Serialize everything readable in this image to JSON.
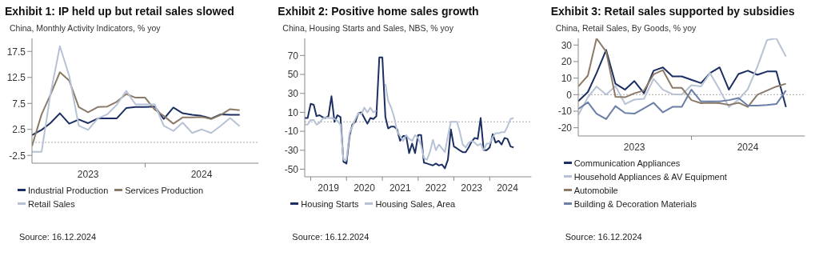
{
  "chart_data": [
    {
      "type": "line",
      "title": "Exhibit 1: IP held up but retail sales slowed",
      "subtitle": "China, Monthly Activity Indicators, % yoy",
      "x": [
        "2023-01",
        "2023-02",
        "2023-03",
        "2023-04",
        "2023-05",
        "2023-06",
        "2023-07",
        "2023-08",
        "2023-09",
        "2023-10",
        "2023-11",
        "2023-12",
        "2024-01",
        "2024-02",
        "2024-03",
        "2024-04",
        "2024-05",
        "2024-06",
        "2024-07",
        "2024-08",
        "2024-09",
        "2024-10",
        "2024-11"
      ],
      "series": [
        {
          "name": "Industrial Production",
          "color": "#1b2f63",
          "values": [
            1.4,
            2.4,
            3.7,
            5.6,
            3.6,
            4.4,
            3.7,
            4.6,
            4.6,
            4.6,
            6.6,
            6.8,
            6.8,
            6.9,
            4.5,
            6.7,
            5.6,
            5.3,
            5.1,
            4.6,
            5.4,
            5.3,
            5.3
          ]
        },
        {
          "name": "Services Production",
          "color": "#8b7a67",
          "values": [
            -0.7,
            5.4,
            9.1,
            13.5,
            11.9,
            6.8,
            5.8,
            6.8,
            6.9,
            7.8,
            9.3,
            8.6,
            8.6,
            6.3,
            5.1,
            3.6,
            4.8,
            4.8,
            4.9,
            4.5,
            5.3,
            6.4,
            6.2
          ]
        },
        {
          "name": "Retail Sales",
          "color": "#b7c2d6",
          "values": [
            -1.8,
            -1.8,
            9.1,
            18.5,
            12.8,
            3.2,
            2.4,
            4.6,
            5.4,
            7.2,
            9.9,
            7.3,
            7.3,
            7.3,
            3.2,
            2.2,
            3.8,
            1.8,
            2.5,
            1.8,
            3.2,
            4.7,
            3.1
          ]
        }
      ],
      "xlim": [
        "2023-01-01",
        "2025-01-01"
      ],
      "xticks": [
        {
          "value": "2023-07-01",
          "label": "2023"
        },
        {
          "value": "2024-01-01",
          "label": null
        },
        {
          "value": "2024-07-01",
          "label": "2024"
        }
      ],
      "ylim": [
        -4,
        20
      ],
      "yticks": [
        -2.5,
        2.5,
        7.5,
        12.5,
        17.5
      ],
      "ref_lines": [
        {
          "axis": "y",
          "value": 0,
          "color": "#aaaaaa",
          "line_style": "dotted"
        }
      ],
      "legend": "bottom",
      "grid": false,
      "line_style": "solid",
      "annotations": [
        "Source: 16.12.2024"
      ]
    },
    {
      "type": "line",
      "title": "Exhibit 2: Positive home sales growth",
      "subtitle": "China, Housing Starts and Sales, NBS, % yoy",
      "x": [
        "2018-11",
        "2018-12",
        "2019-01",
        "2019-02",
        "2019-03",
        "2019-04",
        "2019-05",
        "2019-06",
        "2019-07",
        "2019-08",
        "2019-09",
        "2019-10",
        "2019-11",
        "2019-12",
        "2020-01",
        "2020-02",
        "2020-03",
        "2020-04",
        "2020-05",
        "2020-06",
        "2020-07",
        "2020-08",
        "2020-09",
        "2020-10",
        "2020-11",
        "2020-12",
        "2021-01",
        "2021-02",
        "2021-03",
        "2021-04",
        "2021-05",
        "2021-06",
        "2021-07",
        "2021-08",
        "2021-09",
        "2021-10",
        "2021-11",
        "2021-12",
        "2022-01",
        "2022-02",
        "2022-03",
        "2022-04",
        "2022-05",
        "2022-06",
        "2022-07",
        "2022-08",
        "2022-09",
        "2022-10",
        "2022-11",
        "2022-12",
        "2023-01",
        "2023-02",
        "2023-03",
        "2023-04",
        "2023-05",
        "2023-06",
        "2023-07",
        "2023-08",
        "2023-09",
        "2023-10",
        "2023-11",
        "2023-12",
        "2024-01",
        "2024-02",
        "2024-03",
        "2024-04",
        "2024-05",
        "2024-06",
        "2024-07",
        "2024-08",
        "2024-09"
      ],
      "series": [
        {
          "name": "Housing Starts",
          "color": "#1b2f63",
          "values": [
            4,
            4,
            19,
            18,
            6,
            7,
            5,
            4,
            6,
            27,
            0,
            7,
            5,
            -42,
            -44,
            -15,
            -3,
            0,
            9,
            10,
            4,
            -2,
            4,
            3,
            6,
            68,
            68,
            5,
            -7,
            -5,
            -5,
            -8,
            -20,
            -15,
            -15,
            -33,
            -23,
            -33,
            -14,
            -14,
            -43,
            -44,
            -45,
            -46,
            -44,
            -46,
            -45,
            -49,
            -40,
            -8,
            -26,
            -28,
            -30,
            -32,
            -32,
            -27,
            -21,
            -17,
            -18,
            4,
            -30,
            -30,
            -27,
            -13,
            -22,
            -20,
            -24,
            -17,
            -18,
            -26,
            -27
          ]
        },
        {
          "name": "Housing Sales, Area",
          "color": "#b7c2d6",
          "values": [
            -3,
            -3,
            2,
            2,
            -3,
            -1,
            3,
            5,
            4,
            4,
            3,
            1,
            -3,
            -40,
            -40,
            -12,
            -5,
            3,
            9,
            8,
            15,
            10,
            15,
            10,
            12,
            null,
            null,
            40,
            22,
            15,
            5,
            -10,
            -15,
            -20,
            -14,
            -18,
            -20,
            -14,
            -17,
            -25,
            -38,
            -40,
            -32,
            -19,
            -30,
            -24,
            -28,
            -32,
            -15,
            0,
            0,
            0,
            -10,
            -24,
            -27,
            -22,
            -20,
            -22,
            -25,
            -23,
            -30,
            -23,
            -23,
            -16,
            -12,
            -12,
            -11,
            -11,
            -5,
            3,
            4
          ]
        }
      ],
      "xlim": [
        "2018-11-01",
        "2025-03-01"
      ],
      "xticks": [
        {
          "value": "2019-01-01",
          "label": null
        },
        {
          "value": "2019-07-01",
          "label": "2019"
        },
        {
          "value": "2020-01-01",
          "label": null
        },
        {
          "value": "2020-07-01",
          "label": "2020"
        },
        {
          "value": "2021-01-01",
          "label": null
        },
        {
          "value": "2021-07-01",
          "label": "2021"
        },
        {
          "value": "2022-01-01",
          "label": null
        },
        {
          "value": "2022-07-01",
          "label": "2022"
        },
        {
          "value": "2023-01-01",
          "label": null
        },
        {
          "value": "2023-07-01",
          "label": "2023"
        },
        {
          "value": "2024-01-01",
          "label": null
        },
        {
          "value": "2024-07-01",
          "label": "2024"
        }
      ],
      "ylim": [
        -58,
        88
      ],
      "yticks": [
        -50,
        -30,
        -10,
        10,
        30,
        50,
        70
      ],
      "ref_lines": [
        {
          "axis": "y",
          "value": 0,
          "color": "#aaaaaa",
          "line_style": "dotted"
        }
      ],
      "legend": "bottom",
      "grid": false,
      "line_style": "solid",
      "annotations": [
        "Source: 16.12.2024"
      ]
    },
    {
      "type": "line",
      "title": "Exhibit 3: Retail sales supported by subsidies",
      "subtitle": "China, Retail Sales, By Goods, % yoy",
      "x": [
        "2023-01",
        "2023-02",
        "2023-03",
        "2023-04",
        "2023-05",
        "2023-06",
        "2023-07",
        "2023-08",
        "2023-09",
        "2023-10",
        "2023-11",
        "2023-12",
        "2024-01",
        "2024-02",
        "2024-03",
        "2024-04",
        "2024-05",
        "2024-06",
        "2024-07",
        "2024-08",
        "2024-09",
        "2024-10",
        "2024-11"
      ],
      "series": [
        {
          "name": "Communication Appliances",
          "color": "#1b2f63",
          "values": [
            -4,
            1.6,
            13,
            27,
            6.6,
            3,
            8.2,
            0.8,
            14.5,
            16.5,
            11,
            11,
            9,
            7,
            13,
            16.5,
            3,
            12.5,
            14.5,
            12,
            14,
            14,
            -7.5
          ]
        },
        {
          "name": "Household Appliances & AV Equipment",
          "color": "#b7c2d6",
          "values": [
            -12.3,
            -1.6,
            4.9,
            0,
            5.2,
            -5.7,
            -3,
            -2.5,
            9.5,
            3,
            0.3,
            0,
            5.7,
            5,
            13,
            3,
            -7.5,
            -3,
            3.3,
            17,
            33,
            34,
            23
          ]
        },
        {
          "name": "Automobile",
          "color": "#8b7a67",
          "values": [
            4.9,
            11.5,
            34,
            26,
            -1.3,
            -1.6,
            0.8,
            2.5,
            12.3,
            14.8,
            4.1,
            4.1,
            -3.3,
            -5.2,
            -4.9,
            -5.2,
            -6.2,
            -4.9,
            -7.4,
            0,
            2.5,
            4.9,
            6.6
          ]
        },
        {
          "name": "Building & Decoration Materials",
          "color": "#6b7fa6",
          "values": [
            -8.7,
            -4.6,
            -11.5,
            -14.8,
            -6.9,
            -11.1,
            -11.5,
            -8.2,
            -4.9,
            -10.7,
            -7.4,
            -7.4,
            3,
            -4.1,
            -4.1,
            -4.1,
            -3.3,
            -2,
            -6.6,
            -6.6,
            -6.3,
            -5.7,
            2.5
          ]
        }
      ],
      "xlim": [
        "2023-01-01",
        "2025-01-01"
      ],
      "xticks": [
        {
          "value": "2023-07-01",
          "label": "2023"
        },
        {
          "value": "2024-01-01",
          "label": null
        },
        {
          "value": "2024-07-01",
          "label": "2024"
        }
      ],
      "ylim": [
        -25,
        34
      ],
      "yticks": [
        -20,
        -10,
        0,
        10,
        20,
        30
      ],
      "ref_lines": [
        {
          "axis": "y",
          "value": 0,
          "color": "#aaaaaa",
          "line_style": "dotted"
        }
      ],
      "legend": "bottom",
      "grid": false,
      "line_style": "solid",
      "annotations": [
        "Source: 16.12.2024"
      ]
    }
  ]
}
